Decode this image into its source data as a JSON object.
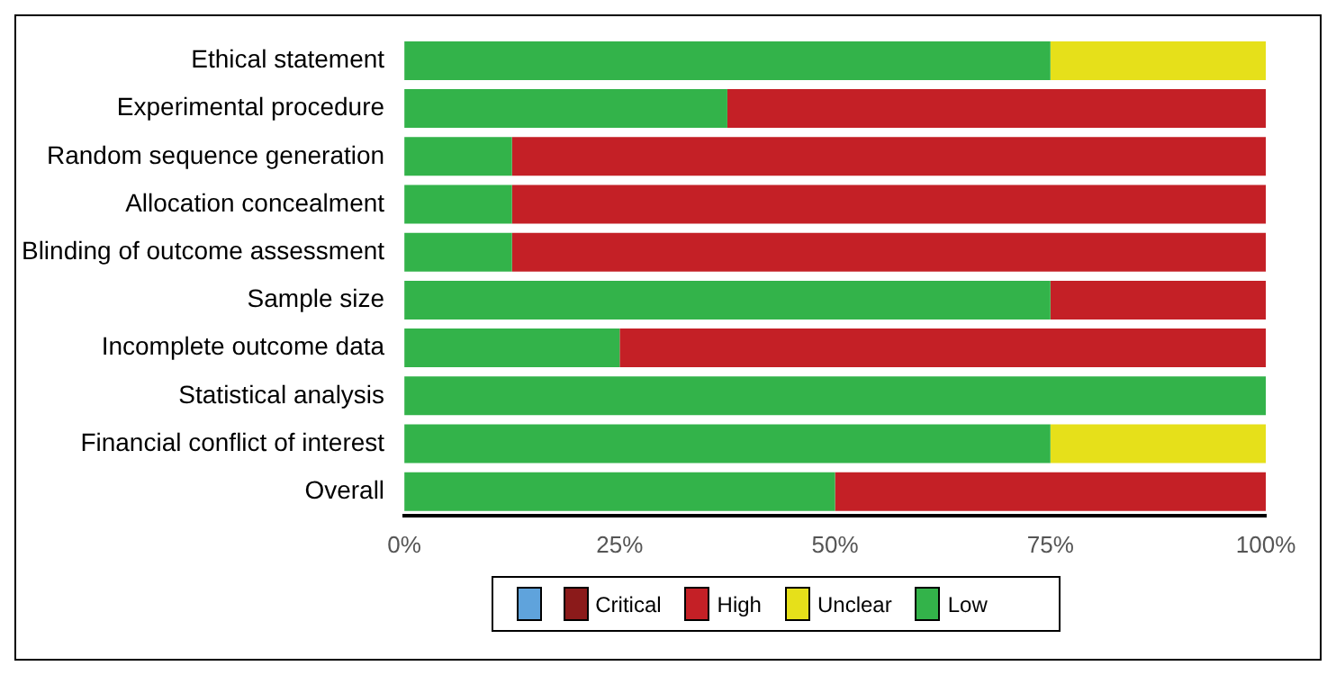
{
  "chart_data": {
    "type": "bar",
    "orientation": "horizontal",
    "stacked": true,
    "categories": [
      "Ethical statement",
      "Experimental procedure",
      "Random sequence generation",
      "Allocation concealment",
      "Blinding of outcome assessment",
      "Sample size",
      "Incomplete outcome data",
      "Statistical analysis",
      "Financial conflict of interest",
      "Overall"
    ],
    "series": [
      {
        "name": "Low",
        "color": "#33b34a",
        "values": [
          75,
          37.5,
          12.5,
          12.5,
          12.5,
          75,
          25,
          100,
          75,
          50
        ]
      },
      {
        "name": "Unclear",
        "color": "#e6e01a",
        "values": [
          25,
          0,
          0,
          0,
          0,
          0,
          0,
          0,
          25,
          0
        ]
      },
      {
        "name": "High",
        "color": "#c42026",
        "values": [
          0,
          62.5,
          87.5,
          87.5,
          87.5,
          25,
          75,
          0,
          0,
          50
        ]
      },
      {
        "name": "Critical",
        "color": "#8b1a1a",
        "values": [
          0,
          0,
          0,
          0,
          0,
          0,
          0,
          0,
          0,
          0
        ]
      },
      {
        "color": "#5fa3dc",
        "values": [
          0,
          0,
          0,
          0,
          0,
          0,
          0,
          0,
          0,
          0
        ]
      }
    ],
    "xlim": [
      0,
      100
    ],
    "xticks": [
      {
        "value": 0,
        "label": "0%"
      },
      {
        "value": 25,
        "label": "25%"
      },
      {
        "value": 50,
        "label": "50%"
      },
      {
        "value": 75,
        "label": "75%"
      },
      {
        "value": 100,
        "label": "100%"
      }
    ],
    "grid": false,
    "legend": "bottom"
  }
}
